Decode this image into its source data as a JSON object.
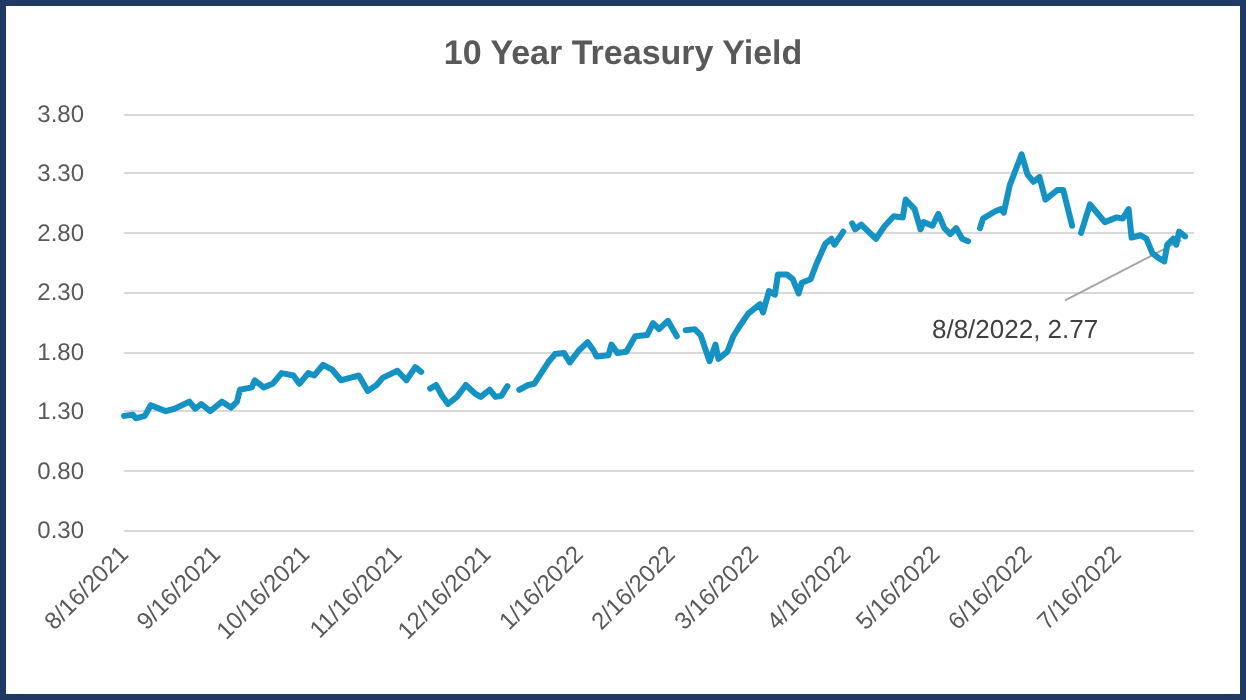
{
  "chart_data": {
    "type": "line",
    "title": "10 Year Treasury Yield",
    "x": [
      "2021-08-16",
      "2021-08-19",
      "2021-08-20",
      "2021-08-23",
      "2021-08-25",
      "2021-08-30",
      "2021-09-02",
      "2021-09-07",
      "2021-09-09",
      "2021-09-11",
      "2021-09-14",
      "2021-09-18",
      "2021-09-21",
      "2021-09-23",
      "2021-09-24",
      "2021-09-28",
      "2021-09-29",
      "2021-10-02",
      "2021-10-05",
      "2021-10-08",
      "2021-10-12",
      "2021-10-14",
      "2021-10-17",
      "2021-10-19",
      "2021-10-22",
      "2021-10-25",
      "2021-10-28",
      "2021-10-31",
      "2021-11-03",
      "2021-11-06",
      "2021-11-09",
      "2021-11-11",
      "2021-11-16",
      "2021-11-19",
      "2021-11-22",
      "2021-11-24",
      "2021-11-25",
      "2021-11-27",
      "2021-11-29",
      "2021-12-01",
      "2021-12-03",
      "2021-12-06",
      "2021-12-09",
      "2021-12-12",
      "2021-12-14",
      "2021-12-17",
      "2021-12-19",
      "2021-12-21",
      "2021-12-23",
      "2021-12-25",
      "2021-12-27",
      "2021-12-30",
      "2022-01-01",
      "2022-01-06",
      "2022-01-08",
      "2022-01-11",
      "2022-01-13",
      "2022-01-16",
      "2022-01-19",
      "2022-01-21",
      "2022-01-22",
      "2022-01-26",
      "2022-01-27",
      "2022-01-29",
      "2022-02-01",
      "2022-02-04",
      "2022-02-08",
      "2022-02-09",
      "2022-02-10",
      "2022-02-12",
      "2022-02-15",
      "2022-02-18",
      "2022-02-20",
      "2022-02-21",
      "2022-02-24",
      "2022-02-26",
      "2022-03-01",
      "2022-03-03",
      "2022-03-04",
      "2022-03-07",
      "2022-03-09",
      "2022-03-11",
      "2022-03-14",
      "2022-03-18",
      "2022-03-19",
      "2022-03-21",
      "2022-03-23",
      "2022-03-24",
      "2022-03-27",
      "2022-03-29",
      "2022-03-31",
      "2022-04-01",
      "2022-04-04",
      "2022-04-06",
      "2022-04-09",
      "2022-04-11",
      "2022-04-12",
      "2022-04-15",
      "2022-04-17",
      "2022-04-18",
      "2022-04-19",
      "2022-04-21",
      "2022-04-26",
      "2022-04-29",
      "2022-05-02",
      "2022-05-05",
      "2022-05-06",
      "2022-05-09",
      "2022-05-11",
      "2022-05-12",
      "2022-05-15",
      "2022-05-17",
      "2022-05-19",
      "2022-05-21",
      "2022-05-23",
      "2022-05-25",
      "2022-05-27",
      "2022-05-29",
      "2022-05-31",
      "2022-06-01",
      "2022-06-05",
      "2022-06-07",
      "2022-06-08",
      "2022-06-10",
      "2022-06-14",
      "2022-06-16",
      "2022-06-18",
      "2022-06-20",
      "2022-06-22",
      "2022-06-26",
      "2022-06-28",
      "2022-07-01",
      "2022-07-03",
      "2022-07-04",
      "2022-07-07",
      "2022-07-09",
      "2022-07-12",
      "2022-07-16",
      "2022-07-18",
      "2022-07-20",
      "2022-07-21",
      "2022-07-24",
      "2022-07-26",
      "2022-07-28",
      "2022-07-30",
      "2022-08-01",
      "2022-08-02",
      "2022-08-04",
      "2022-08-05",
      "2022-08-06",
      "2022-08-08"
    ],
    "series": [
      {
        "color": "#1592c4",
        "values": [
          1.26,
          1.27,
          1.24,
          1.26,
          1.35,
          1.3,
          1.32,
          1.38,
          1.32,
          1.36,
          1.3,
          1.38,
          1.33,
          1.38,
          1.48,
          1.5,
          1.56,
          1.5,
          1.53,
          1.62,
          1.6,
          1.53,
          1.62,
          1.6,
          1.69,
          1.65,
          1.56,
          1.58,
          1.6,
          1.47,
          1.52,
          1.58,
          1.64,
          1.56,
          1.67,
          1.63,
          null,
          1.49,
          1.52,
          1.43,
          1.36,
          1.42,
          1.52,
          1.45,
          1.42,
          1.48,
          1.42,
          1.43,
          1.51,
          null,
          1.48,
          1.52,
          1.53,
          1.72,
          1.78,
          1.79,
          1.71,
          1.81,
          1.88,
          1.81,
          1.76,
          1.77,
          1.86,
          1.79,
          1.8,
          1.93,
          1.94,
          1.99,
          2.04,
          1.99,
          2.06,
          1.93,
          null,
          1.98,
          1.99,
          1.94,
          1.72,
          1.86,
          1.74,
          1.8,
          1.93,
          2.01,
          2.12,
          2.2,
          2.13,
          2.31,
          2.28,
          2.45,
          2.45,
          2.41,
          2.29,
          2.38,
          2.41,
          2.54,
          2.71,
          2.75,
          2.7,
          2.81,
          null,
          2.88,
          2.83,
          2.87,
          2.75,
          2.86,
          2.94,
          2.93,
          3.08,
          3.0,
          2.83,
          2.89,
          2.86,
          2.96,
          2.84,
          2.79,
          2.84,
          2.75,
          2.73,
          null,
          2.84,
          2.92,
          2.98,
          3.0,
          2.97,
          3.2,
          3.46,
          3.29,
          3.23,
          3.27,
          3.08,
          3.16,
          3.16,
          2.86,
          null,
          2.8,
          3.04,
          2.98,
          2.89,
          2.93,
          2.92,
          3.0,
          2.76,
          2.78,
          2.75,
          2.63,
          2.59,
          2.56,
          2.7,
          2.75,
          2.7,
          2.81,
          2.77
        ]
      }
    ],
    "xlim": [
      "2021-08-16",
      "2022-08-11"
    ],
    "xticks": [
      {
        "value": "2021-08-16",
        "label": "8/16/2021"
      },
      {
        "value": "2021-09-16",
        "label": "9/16/2021"
      },
      {
        "value": "2021-10-16",
        "label": "10/16/2021"
      },
      {
        "value": "2021-11-16",
        "label": "11/16/2021"
      },
      {
        "value": "2021-12-16",
        "label": "12/16/2021"
      },
      {
        "value": "2022-01-16",
        "label": "1/16/2022"
      },
      {
        "value": "2022-02-16",
        "label": "2/16/2022"
      },
      {
        "value": "2022-03-16",
        "label": "3/16/2022"
      },
      {
        "value": "2022-04-16",
        "label": "4/16/2022"
      },
      {
        "value": "2022-05-16",
        "label": "5/16/2022"
      },
      {
        "value": "2022-06-16",
        "label": "6/16/2022"
      },
      {
        "value": "2022-07-16",
        "label": "7/16/2022"
      }
    ],
    "ylim": [
      0.3,
      3.8
    ],
    "yticks": [
      {
        "value": 0.3,
        "label": "0.30"
      },
      {
        "value": 0.8,
        "label": "0.80"
      },
      {
        "value": 1.3,
        "label": "1.30"
      },
      {
        "value": 1.8,
        "label": "1.80"
      },
      {
        "value": 2.3,
        "label": "2.30"
      },
      {
        "value": 2.8,
        "label": "2.80"
      },
      {
        "value": 3.3,
        "label": "3.30"
      },
      {
        "value": 3.8,
        "label": "3.80"
      }
    ],
    "grid": "y",
    "marker": "none",
    "line_style": "solid",
    "annotations": [
      {
        "text": "8/8/2022, 2.77",
        "x": "2022-08-08",
        "y": 2.77
      }
    ]
  }
}
